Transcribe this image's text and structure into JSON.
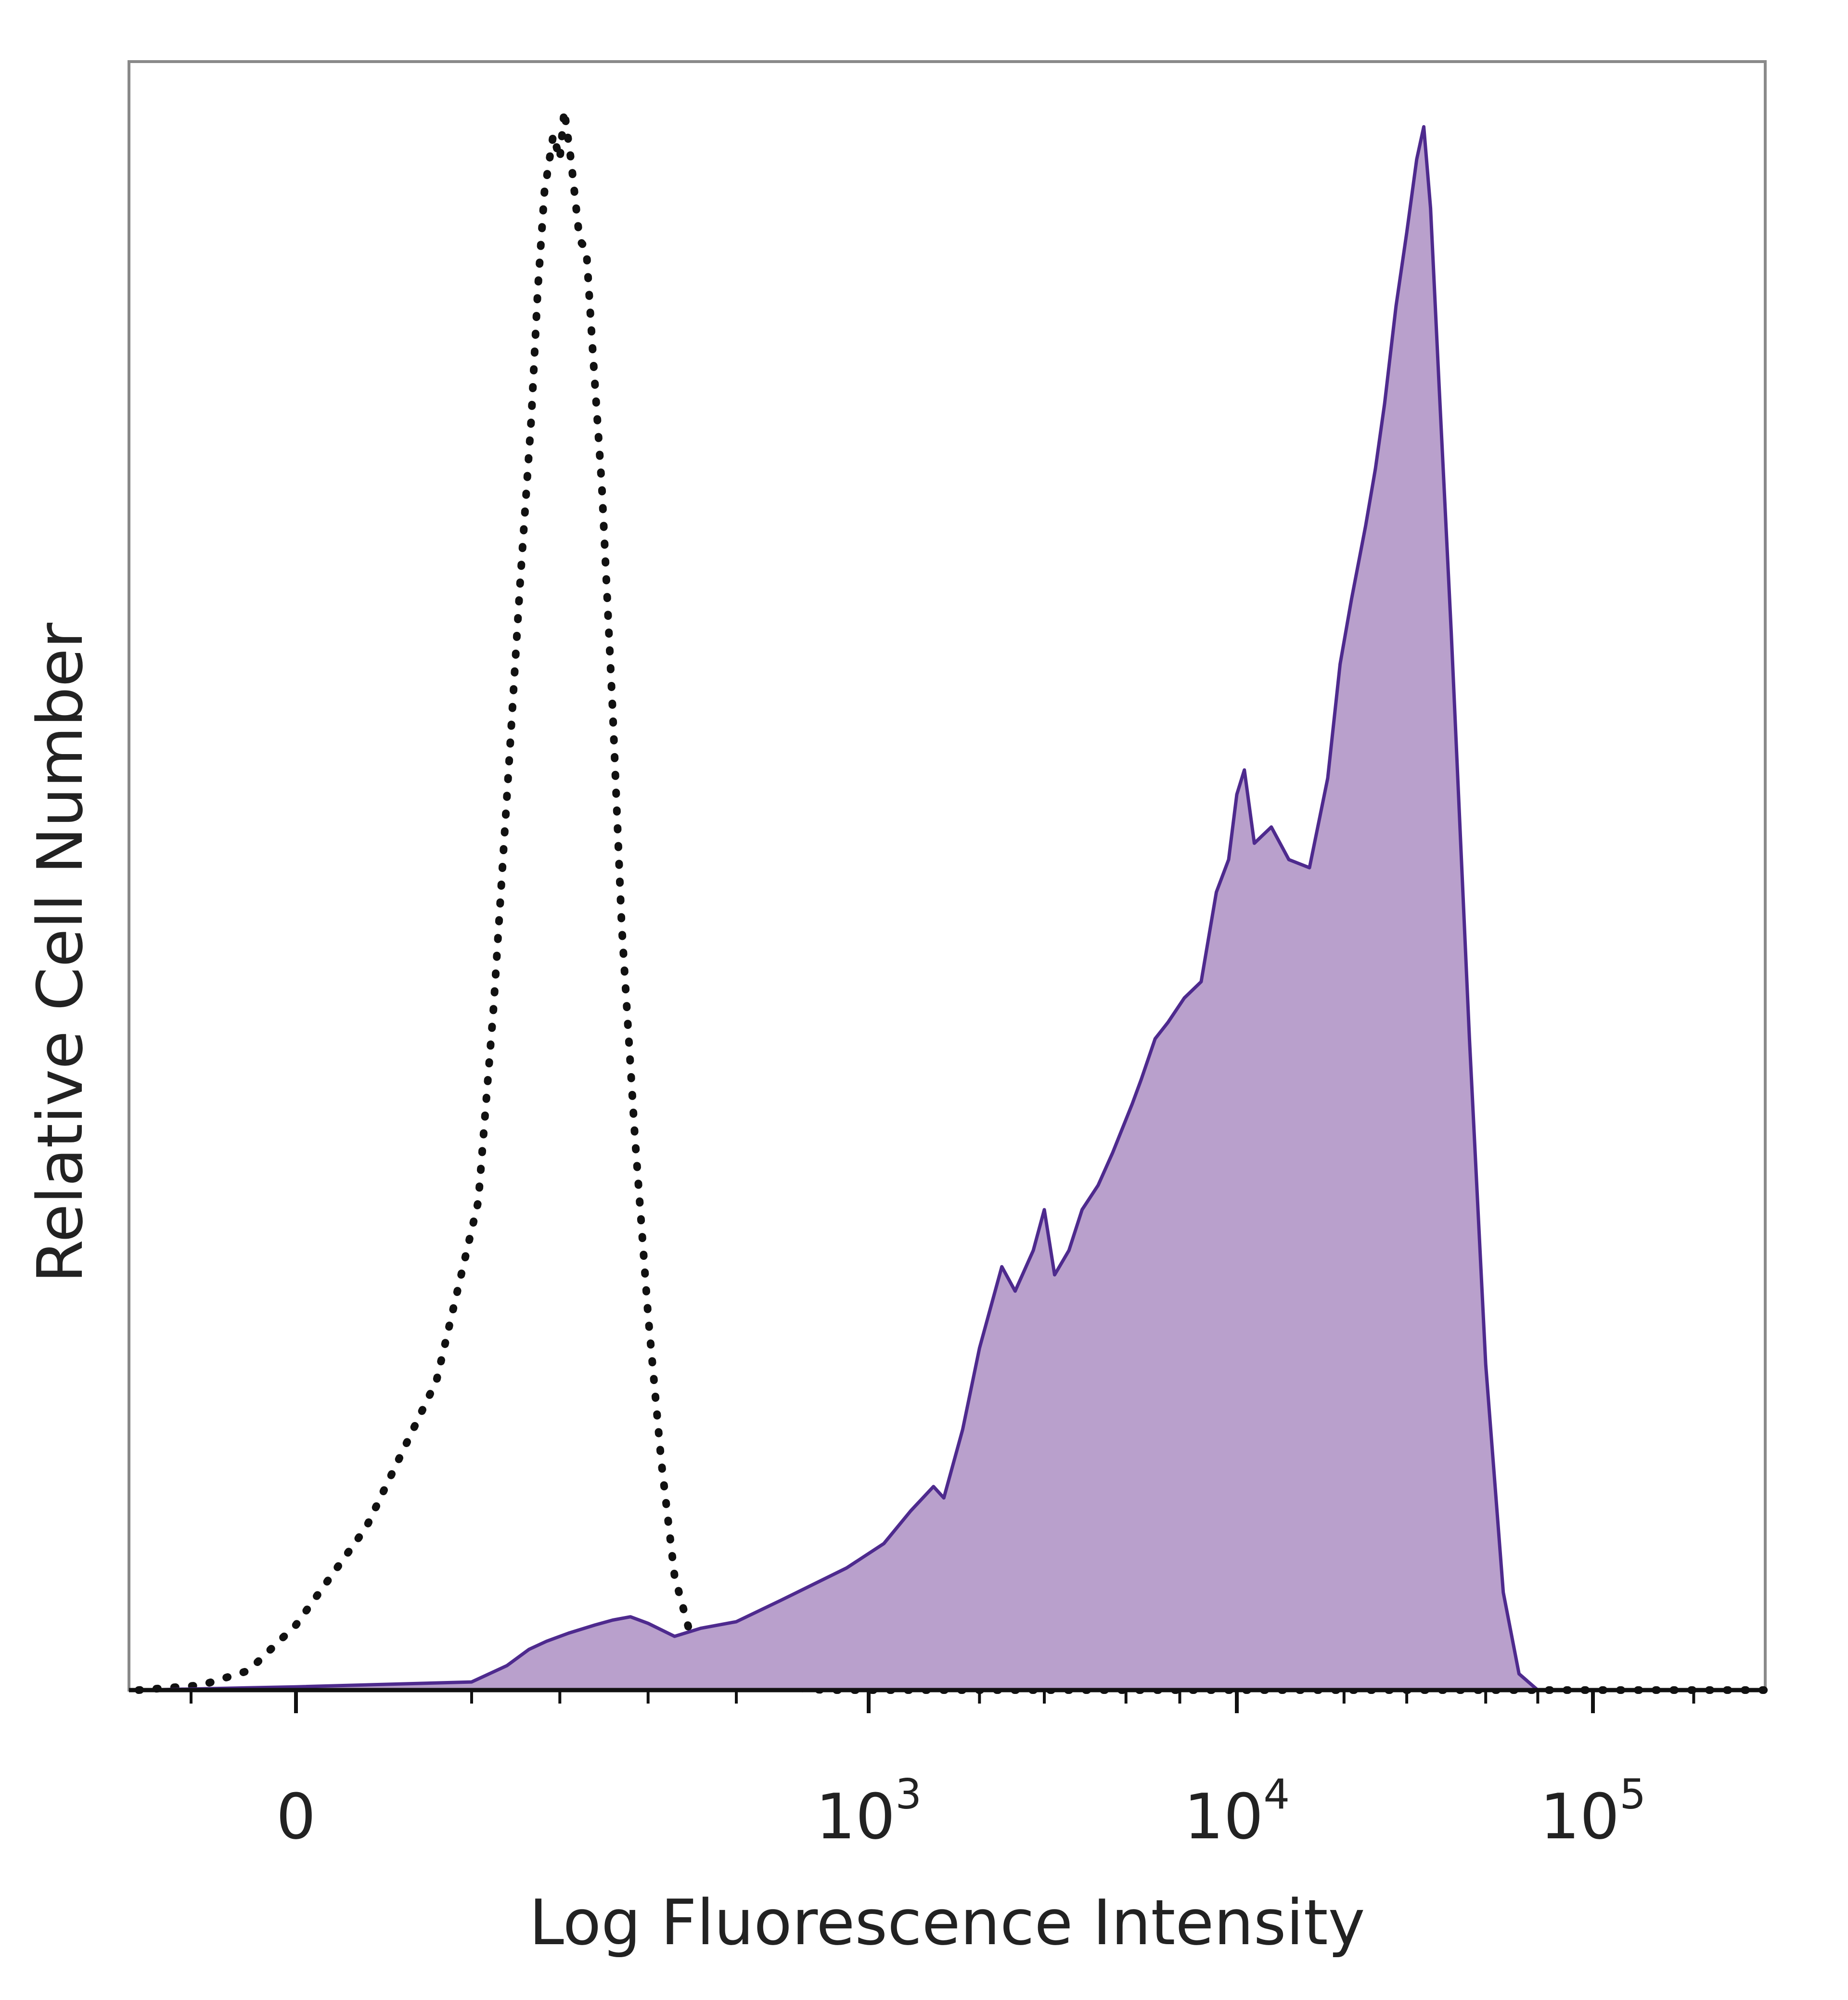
{
  "chart_data": {
    "type": "area",
    "title": "",
    "xlabel": "Log Fluorescence Intensity",
    "ylabel": "Relative Cell Number",
    "x_scale": "biexponential (log above 10^3, linear around 0)",
    "xlim": [
      -150,
      200000
    ],
    "ylim": [
      0,
      100
    ],
    "x_ticks": [
      {
        "value": 0,
        "label": "0"
      },
      {
        "value": 1000,
        "base": "10",
        "exp": "3"
      },
      {
        "value": 10000,
        "base": "10",
        "exp": "4"
      },
      {
        "value": 100000,
        "base": "10",
        "exp": "5"
      }
    ],
    "grid": false,
    "legend": "none",
    "series": [
      {
        "style": "dotted",
        "fill": "none",
        "color": "#111111",
        "points": [
          [
            -150,
            0
          ],
          [
            -90,
            0.3
          ],
          [
            -45,
            1.2
          ],
          [
            0,
            4
          ],
          [
            40,
            10
          ],
          [
            80,
            19
          ],
          [
            115,
            30
          ],
          [
            150,
            42
          ],
          [
            185,
            57
          ],
          [
            210,
            68
          ],
          [
            235,
            78
          ],
          [
            250,
            86
          ],
          [
            265,
            92
          ],
          [
            285,
            95.5
          ],
          [
            300,
            94
          ],
          [
            310,
            97
          ],
          [
            325,
            94
          ],
          [
            345,
            89
          ],
          [
            360,
            88.5
          ],
          [
            375,
            82
          ],
          [
            395,
            74
          ],
          [
            420,
            60
          ],
          [
            440,
            47
          ],
          [
            470,
            34
          ],
          [
            500,
            23
          ],
          [
            530,
            14
          ],
          [
            560,
            7
          ],
          [
            600,
            3
          ],
          [
            650,
            1.2
          ],
          [
            750,
            0.3
          ],
          [
            900,
            0
          ],
          [
            200000,
            0
          ]
        ]
      },
      {
        "style": "solid",
        "fill": "#B9A0CC",
        "color": "#4E2A8E",
        "points": [
          [
            -150,
            0
          ],
          [
            0,
            0.2
          ],
          [
            100,
            0.5
          ],
          [
            180,
            1.5
          ],
          [
            230,
            2.5
          ],
          [
            270,
            3
          ],
          [
            320,
            3.5
          ],
          [
            380,
            4
          ],
          [
            420,
            4.3
          ],
          [
            460,
            4.5
          ],
          [
            500,
            4.1
          ],
          [
            560,
            3.3
          ],
          [
            620,
            3.8
          ],
          [
            700,
            4.2
          ],
          [
            800,
            5.5
          ],
          [
            950,
            7.5
          ],
          [
            1100,
            9
          ],
          [
            1300,
            11
          ],
          [
            1500,
            12.5
          ],
          [
            1600,
            11.8
          ],
          [
            1800,
            16
          ],
          [
            2000,
            21
          ],
          [
            2300,
            26
          ],
          [
            2500,
            24.5
          ],
          [
            2800,
            27
          ],
          [
            3000,
            29.5
          ],
          [
            3200,
            25.5
          ],
          [
            3500,
            27
          ],
          [
            3800,
            29.5
          ],
          [
            4200,
            31
          ],
          [
            4600,
            33
          ],
          [
            5200,
            36
          ],
          [
            5500,
            37.5
          ],
          [
            6000,
            40
          ],
          [
            6500,
            41
          ],
          [
            7200,
            42.5
          ],
          [
            8000,
            43.5
          ],
          [
            8800,
            49
          ],
          [
            9500,
            51
          ],
          [
            10000,
            55
          ],
          [
            10500,
            56.5
          ],
          [
            11200,
            52
          ],
          [
            12500,
            53
          ],
          [
            14000,
            51
          ],
          [
            16000,
            50.5
          ],
          [
            18000,
            56
          ],
          [
            19500,
            63
          ],
          [
            21000,
            67
          ],
          [
            23000,
            71.5
          ],
          [
            24500,
            75
          ],
          [
            26000,
            79
          ],
          [
            28000,
            85
          ],
          [
            30000,
            89.5
          ],
          [
            32000,
            94
          ],
          [
            33500,
            96
          ],
          [
            35000,
            91
          ],
          [
            37000,
            80
          ],
          [
            40000,
            65
          ],
          [
            45000,
            40
          ],
          [
            50000,
            20
          ],
          [
            56000,
            6
          ],
          [
            62000,
            1
          ],
          [
            70000,
            0
          ],
          [
            200000,
            0
          ]
        ]
      }
    ]
  }
}
